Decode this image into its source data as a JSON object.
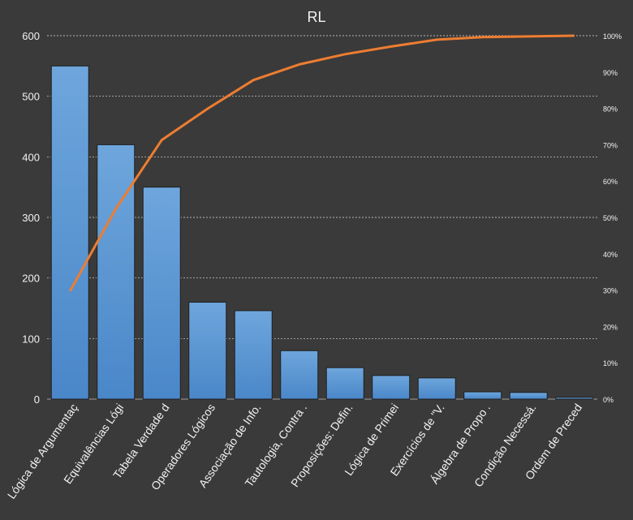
{
  "chart_data": {
    "type": "bar",
    "title": "RL",
    "categories": [
      "Lógica de Argumentaç",
      "Equivalências Lógi",
      "Tabela Verdade d",
      "Operadores Lógicos",
      "Associação de Info.",
      "Tautologia, Contra .",
      "Proposições: Defin.",
      "Lógica de Primei",
      "Exercícios de \"V.",
      "Álgebra de Propo .",
      "Condição Necessá.",
      "Ordem de Preced"
    ],
    "series": [
      {
        "type": "bar",
        "values": [
          550,
          420,
          350,
          160,
          146,
          80,
          52,
          39,
          35,
          12,
          11,
          3
        ],
        "color": "#5b9bd5",
        "axis": "left"
      },
      {
        "type": "line",
        "values": [
          29.7,
          52.4,
          71.3,
          79.9,
          87.8,
          92.1,
          94.9,
          97.0,
          98.9,
          99.6,
          99.8,
          100.0
        ],
        "color": "#ed7d31",
        "axis": "right"
      }
    ],
    "ylim": [
      0,
      600
    ],
    "yticks": [
      "0",
      "100",
      "200",
      "300",
      "400",
      "500",
      "600"
    ],
    "y2lim": [
      0,
      100
    ],
    "y2ticks": [
      "0%",
      "10%",
      "20%",
      "30%",
      "40%",
      "50%",
      "60%",
      "70%",
      "80%",
      "90%",
      "100%"
    ],
    "grid": true,
    "legend": "none"
  }
}
